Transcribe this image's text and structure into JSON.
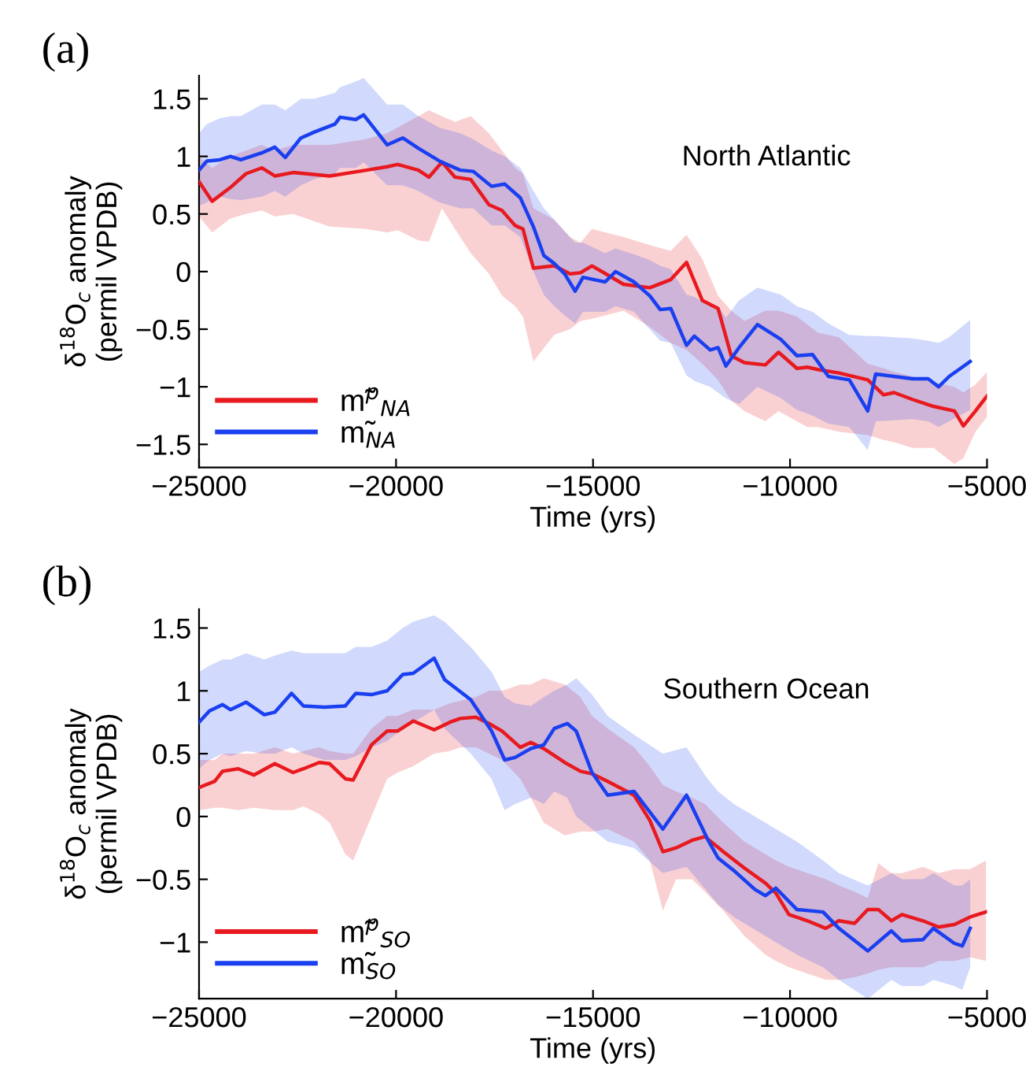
{
  "chart_data": [
    {
      "type": "line",
      "title": "(a)",
      "xlabel": "Time (yrs)",
      "ylabel": "δ$^{18}$O$_{c}$ anomaly\n(permil VPDB)",
      "annotations": [
        "North Atlantic"
      ],
      "legend": "bottom left",
      "grid": false,
      "xlim": [
        -25000,
        -5000
      ],
      "ylim": [
        -1.7,
        1.7
      ],
      "xticks": [
        {
          "value": -25000,
          "label": "−25000"
        },
        {
          "value": -20000,
          "label": "−20000"
        },
        {
          "value": -15000,
          "label": "−15000"
        },
        {
          "value": -10000,
          "label": "−10000"
        },
        {
          "value": -5000,
          "label": "−5000"
        }
      ],
      "yticks": [
        {
          "value": -1.5,
          "label": "−1.5"
        },
        {
          "value": -1,
          "label": "−1"
        },
        {
          "value": -0.5,
          "label": "−0.5"
        },
        0,
        0.5,
        1,
        1.5
      ],
      "series": [
        {
          "name": "m̃$^{p}$$_{NA}$",
          "color": "#e8191f",
          "x": [
            -25000,
            -24668,
            -24204,
            -23807,
            -23409,
            -23077,
            -22613,
            -21685,
            -20757,
            -20226,
            -19961,
            -19431,
            -19166,
            -18834,
            -18503,
            -18105,
            -17641,
            -17309,
            -16978,
            -16779,
            -16514,
            -15984,
            -15586,
            -15320,
            -15027,
            -14227,
            -13560,
            -13027,
            -12627,
            -12227,
            -11827,
            -11493,
            -11160,
            -10627,
            -10293,
            -9827,
            -9560,
            -9293,
            -8760,
            -8027,
            -7627,
            -7360,
            -6893,
            -6360,
            -5827,
            -5600,
            -5293,
            -5000
          ],
          "values": [
            0.78,
            0.61,
            0.73,
            0.85,
            0.9,
            0.83,
            0.86,
            0.83,
            0.88,
            0.91,
            0.93,
            0.88,
            0.82,
            0.95,
            0.82,
            0.8,
            0.58,
            0.53,
            0.4,
            0.37,
            0.03,
            0.05,
            -0.02,
            -0.01,
            0.05,
            -0.11,
            -0.14,
            -0.07,
            0.08,
            -0.25,
            -0.32,
            -0.73,
            -0.79,
            -0.81,
            -0.7,
            -0.84,
            -0.83,
            -0.85,
            -0.88,
            -0.94,
            -1.07,
            -1.05,
            -1.11,
            -1.17,
            -1.21,
            -1.34,
            -1.21,
            -1.08
          ],
          "upper": [
            1.0,
            0.9,
            1.0,
            1.05,
            1.1,
            1.05,
            1.1,
            1.1,
            1.15,
            1.2,
            1.25,
            1.35,
            1.4,
            1.35,
            1.3,
            1.35,
            1.2,
            1.05,
            0.9,
            0.85,
            0.55,
            0.45,
            0.3,
            0.25,
            0.37,
            0.3,
            0.23,
            0.18,
            0.32,
            0.11,
            -0.21,
            -0.34,
            -0.43,
            -0.34,
            -0.34,
            -0.39,
            -0.46,
            -0.53,
            -0.57,
            -0.8,
            -0.84,
            -0.87,
            -0.91,
            -0.96,
            -1.0,
            -1.05,
            -0.98,
            -0.87
          ],
          "lower": [
            0.48,
            0.34,
            0.46,
            0.5,
            0.53,
            0.48,
            0.5,
            0.39,
            0.37,
            0.34,
            0.36,
            0.27,
            0.26,
            0.55,
            0.37,
            0.16,
            -0.02,
            -0.21,
            -0.3,
            -0.39,
            -0.78,
            -0.55,
            -0.5,
            -0.43,
            -0.41,
            -0.34,
            -0.48,
            -0.62,
            -0.68,
            -0.8,
            -0.94,
            -1.12,
            -1.21,
            -1.3,
            -1.21,
            -1.3,
            -1.35,
            -1.35,
            -1.39,
            -1.42,
            -1.46,
            -1.48,
            -1.53,
            -1.53,
            -1.67,
            -1.62,
            -1.39,
            -1.26
          ]
        },
        {
          "name": "m̃$_{NA}$",
          "color": "#1a3ff0",
          "x": [
            -25000,
            -24801,
            -24470,
            -24204,
            -23939,
            -23409,
            -23077,
            -22812,
            -22414,
            -22083,
            -21552,
            -21420,
            -21022,
            -20823,
            -20226,
            -19829,
            -19431,
            -18900,
            -18370,
            -18039,
            -17575,
            -17243,
            -16845,
            -16514,
            -16249,
            -15984,
            -15719,
            -15453,
            -15254,
            -14693,
            -14427,
            -13960,
            -13560,
            -13294,
            -13027,
            -12627,
            -12427,
            -12027,
            -11827,
            -11627,
            -11294,
            -10827,
            -10227,
            -9827,
            -9427,
            -9027,
            -8494,
            -8027,
            -7827,
            -6893,
            -6493,
            -6227,
            -5960,
            -5427
          ],
          "values": [
            0.88,
            0.96,
            0.97,
            1.0,
            0.97,
            1.03,
            1.08,
            0.99,
            1.16,
            1.21,
            1.28,
            1.34,
            1.32,
            1.36,
            1.1,
            1.16,
            1.07,
            0.96,
            0.88,
            0.87,
            0.74,
            0.76,
            0.64,
            0.39,
            0.14,
            0.07,
            -0.02,
            -0.17,
            -0.05,
            -0.09,
            0.0,
            -0.09,
            -0.21,
            -0.33,
            -0.32,
            -0.64,
            -0.56,
            -0.68,
            -0.66,
            -0.82,
            -0.66,
            -0.46,
            -0.59,
            -0.73,
            -0.72,
            -0.91,
            -0.94,
            -1.21,
            -0.89,
            -0.93,
            -0.93,
            -1.0,
            -0.91,
            -0.78
          ],
          "upper": [
            1.2,
            1.28,
            1.33,
            1.35,
            1.35,
            1.45,
            1.45,
            1.4,
            1.5,
            1.5,
            1.55,
            1.6,
            1.65,
            1.68,
            1.45,
            1.45,
            1.35,
            1.25,
            1.2,
            1.15,
            1.05,
            1.0,
            0.9,
            0.7,
            0.55,
            0.45,
            0.35,
            0.25,
            0.25,
            0.16,
            0.2,
            0.15,
            0.1,
            0.05,
            0.02,
            -0.2,
            -0.22,
            -0.3,
            -0.3,
            -0.4,
            -0.25,
            -0.14,
            -0.2,
            -0.3,
            -0.35,
            -0.45,
            -0.55,
            -0.56,
            -0.56,
            -0.58,
            -0.6,
            -0.62,
            -0.57,
            -0.42
          ],
          "lower": [
            0.57,
            0.6,
            0.65,
            0.63,
            0.62,
            0.65,
            0.7,
            0.65,
            0.75,
            0.8,
            0.85,
            0.9,
            0.9,
            0.95,
            0.75,
            0.75,
            0.7,
            0.6,
            0.55,
            0.55,
            0.4,
            0.4,
            0.3,
            0.0,
            -0.2,
            -0.3,
            -0.38,
            -0.45,
            -0.35,
            -0.35,
            -0.3,
            -0.35,
            -0.5,
            -0.6,
            -0.62,
            -0.9,
            -0.95,
            -1.0,
            -1.05,
            -1.1,
            -1.15,
            -1.0,
            -1.1,
            -1.2,
            -1.25,
            -1.32,
            -1.35,
            -1.55,
            -1.3,
            -1.28,
            -1.3,
            -1.35,
            -1.3,
            -1.2
          ]
        }
      ]
    },
    {
      "type": "line",
      "title": "(b)",
      "xlabel": "Time (yrs)",
      "ylabel": "δ$^{18}$O$_{c}$ anomaly\n(permil VPDB)",
      "annotations": [
        "Southern Ocean"
      ],
      "legend": "bottom left",
      "grid": false,
      "xlim": [
        -25000,
        -5000
      ],
      "ylim": [
        -1.45,
        1.65
      ],
      "xticks": [
        {
          "value": -25000,
          "label": "−25000"
        },
        {
          "value": -20000,
          "label": "−20000"
        },
        {
          "value": -15000,
          "label": "−15000"
        },
        {
          "value": -10000,
          "label": "−10000"
        },
        {
          "value": -5000,
          "label": "−5000"
        }
      ],
      "yticks": [
        {
          "value": -1,
          "label": "−1"
        },
        {
          "value": -0.5,
          "label": "−0.5"
        },
        0,
        0.5,
        1,
        1.5
      ],
      "series": [
        {
          "name": "m̃$^{p}$$_{SO}$",
          "color": "#e8191f",
          "x": [
            -25000,
            -24602,
            -24403,
            -24005,
            -23608,
            -23077,
            -22613,
            -22348,
            -21950,
            -21685,
            -21287,
            -21088,
            -20624,
            -20226,
            -19961,
            -19563,
            -19033,
            -18635,
            -18370,
            -17972,
            -17641,
            -17309,
            -16845,
            -16580,
            -16249,
            -15719,
            -15320,
            -15027,
            -14627,
            -13960,
            -13560,
            -13227,
            -12894,
            -12494,
            -12160,
            -11694,
            -11160,
            -10627,
            -10360,
            -10027,
            -9560,
            -9093,
            -8760,
            -8360,
            -8027,
            -7760,
            -7427,
            -7160,
            -6627,
            -6227,
            -5827,
            -5427,
            -5027
          ],
          "values": [
            0.23,
            0.28,
            0.36,
            0.38,
            0.33,
            0.42,
            0.35,
            0.38,
            0.43,
            0.42,
            0.3,
            0.29,
            0.57,
            0.68,
            0.68,
            0.76,
            0.69,
            0.75,
            0.78,
            0.79,
            0.74,
            0.68,
            0.55,
            0.59,
            0.54,
            0.43,
            0.36,
            0.34,
            0.28,
            0.17,
            -0.03,
            -0.28,
            -0.25,
            -0.19,
            -0.16,
            -0.28,
            -0.41,
            -0.53,
            -0.61,
            -0.78,
            -0.83,
            -0.89,
            -0.83,
            -0.85,
            -0.74,
            -0.74,
            -0.83,
            -0.78,
            -0.83,
            -0.88,
            -0.86,
            -0.8,
            -0.76
          ],
          "upper": [
            0.45,
            0.45,
            0.5,
            0.5,
            0.5,
            0.55,
            0.5,
            0.52,
            0.55,
            0.52,
            0.5,
            0.5,
            0.7,
            0.8,
            0.8,
            0.85,
            0.85,
            0.9,
            0.92,
            0.95,
            1.0,
            1.0,
            1.05,
            1.05,
            1.1,
            1.05,
            0.95,
            0.8,
            0.7,
            0.55,
            0.4,
            0.25,
            0.2,
            0.15,
            0.1,
            -0.05,
            -0.2,
            -0.3,
            -0.35,
            -0.4,
            -0.45,
            -0.5,
            -0.55,
            -0.6,
            -0.65,
            -0.37,
            -0.45,
            -0.45,
            -0.4,
            -0.45,
            -0.42,
            -0.42,
            -0.35
          ],
          "lower": [
            0.05,
            0.07,
            0.07,
            0.05,
            0.07,
            0.05,
            0.05,
            0.08,
            0.02,
            -0.05,
            -0.3,
            -0.35,
            0.0,
            0.3,
            0.35,
            0.4,
            0.5,
            0.52,
            0.55,
            0.55,
            0.5,
            0.45,
            0.3,
            0.15,
            -0.05,
            -0.15,
            -0.12,
            -0.12,
            -0.1,
            -0.2,
            -0.35,
            -0.75,
            -0.5,
            -0.5,
            -0.6,
            -0.75,
            -0.95,
            -1.1,
            -1.15,
            -1.2,
            -1.25,
            -1.3,
            -1.3,
            -1.28,
            -1.25,
            -1.22,
            -1.2,
            -1.2,
            -1.2,
            -1.15,
            -1.15,
            -1.12,
            -1.15
          ]
        },
        {
          "name": "m̃$_{SO}$",
          "color": "#1a3ff0",
          "x": [
            -25000,
            -24735,
            -24403,
            -24204,
            -23807,
            -23343,
            -23077,
            -22653,
            -22348,
            -21818,
            -21287,
            -21022,
            -20624,
            -20226,
            -19829,
            -19563,
            -19033,
            -18768,
            -18105,
            -17575,
            -17243,
            -16978,
            -16580,
            -16249,
            -15984,
            -15653,
            -15427,
            -15027,
            -14627,
            -13960,
            -13227,
            -12627,
            -12094,
            -11827,
            -11427,
            -10894,
            -10627,
            -10360,
            -9827,
            -9160,
            -8760,
            -8027,
            -7427,
            -7160,
            -6627,
            -6360,
            -5827,
            -5627,
            -5427
          ],
          "values": [
            0.75,
            0.84,
            0.89,
            0.85,
            0.91,
            0.81,
            0.83,
            0.98,
            0.88,
            0.87,
            0.88,
            0.98,
            0.97,
            1.0,
            1.13,
            1.14,
            1.26,
            1.09,
            0.93,
            0.68,
            0.45,
            0.47,
            0.54,
            0.57,
            0.7,
            0.74,
            0.68,
            0.35,
            0.17,
            0.2,
            -0.1,
            0.17,
            -0.18,
            -0.33,
            -0.43,
            -0.58,
            -0.63,
            -0.57,
            -0.74,
            -0.76,
            -0.89,
            -1.07,
            -0.91,
            -0.99,
            -0.98,
            -0.89,
            -1.01,
            -1.03,
            -0.89
          ],
          "upper": [
            1.15,
            1.2,
            1.25,
            1.25,
            1.3,
            1.25,
            1.28,
            1.32,
            1.3,
            1.3,
            1.3,
            1.35,
            1.35,
            1.4,
            1.5,
            1.55,
            1.6,
            1.55,
            1.35,
            1.15,
            0.95,
            0.9,
            0.88,
            0.95,
            1.0,
            1.05,
            1.1,
            0.97,
            0.8,
            0.65,
            0.5,
            0.55,
            0.3,
            0.2,
            0.1,
            0.0,
            -0.05,
            -0.1,
            -0.2,
            -0.35,
            -0.45,
            -0.55,
            -0.45,
            -0.5,
            -0.5,
            -0.45,
            -0.55,
            -0.55,
            -0.5
          ],
          "lower": [
            0.38,
            0.45,
            0.5,
            0.48,
            0.52,
            0.5,
            0.5,
            0.55,
            0.5,
            0.45,
            0.45,
            0.48,
            0.55,
            0.6,
            0.7,
            0.75,
            0.85,
            0.7,
            0.5,
            0.3,
            0.05,
            0.1,
            0.15,
            0.1,
            0.2,
            0.15,
            0.0,
            -0.1,
            -0.2,
            -0.25,
            -0.45,
            -0.4,
            -0.6,
            -0.7,
            -0.8,
            -0.9,
            -0.95,
            -1.0,
            -1.1,
            -1.2,
            -1.3,
            -1.45,
            -1.3,
            -1.35,
            -1.35,
            -1.3,
            -1.35,
            -1.38,
            -1.2
          ]
        }
      ]
    }
  ]
}
